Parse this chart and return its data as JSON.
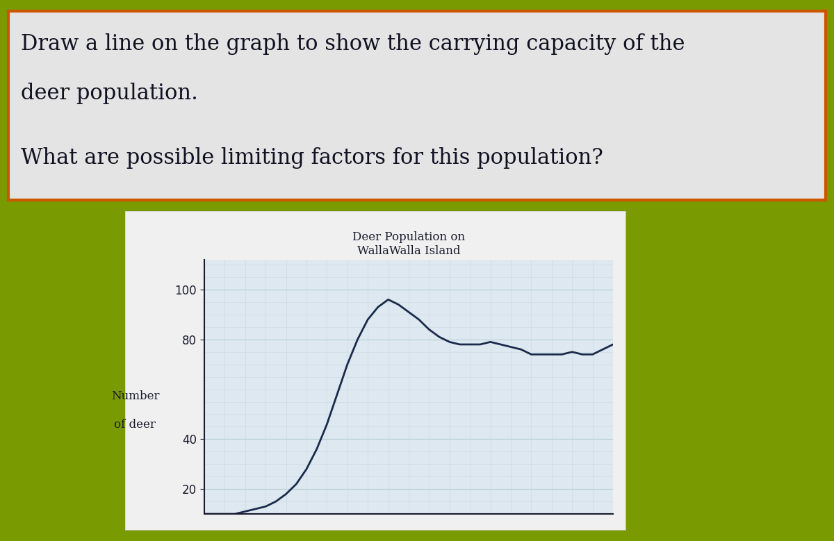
{
  "title": "Deer Population on\nWallaWalla Island",
  "ylabel_line1": "Number",
  "ylabel_line2": "of deer",
  "text_box_line1": "Draw a line on the graph to show the carrying capacity of the",
  "text_box_line2": "deer population.",
  "text_box_line3": "What are possible limiting factors for this population?",
  "bg_outer": "#7a9a01",
  "bg_text_box": "#e4e4e4",
  "text_box_border": "#cc5500",
  "chart_panel_bg": "#dde8f0",
  "yticks": [
    20,
    40,
    80,
    100
  ],
  "ylim": [
    10,
    112
  ],
  "xlim": [
    0,
    20
  ],
  "line_color": "#1a2a4a",
  "deer_x": [
    0,
    0.5,
    1,
    1.5,
    2,
    2.5,
    3,
    3.5,
    4,
    4.5,
    5,
    5.5,
    6,
    6.5,
    7,
    7.5,
    8,
    8.5,
    9,
    9.5,
    10,
    10.5,
    11,
    11.5,
    12,
    12.5,
    13,
    13.5,
    14,
    14.5,
    15,
    15.5,
    16,
    16.5,
    17,
    17.5,
    18,
    18.5,
    19,
    19.5,
    20
  ],
  "deer_y": [
    10,
    10,
    10,
    10,
    11,
    12,
    13,
    15,
    18,
    22,
    28,
    36,
    46,
    58,
    70,
    80,
    88,
    93,
    96,
    94,
    91,
    88,
    84,
    81,
    79,
    78,
    78,
    78,
    79,
    78,
    77,
    76,
    74,
    74,
    74,
    74,
    75,
    74,
    74,
    76,
    78
  ],
  "title_fontsize": 12,
  "ylabel_fontsize": 12,
  "tick_fontsize": 12,
  "text_fontsize": 22,
  "text2_fontsize": 22,
  "grid_color": "#b8cfd8",
  "grid_color_fine": "#ccdce8"
}
